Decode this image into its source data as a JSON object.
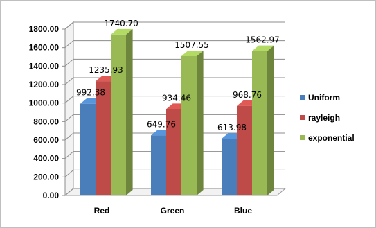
{
  "chart_data": {
    "type": "bar",
    "categories": [
      "Red",
      "Green",
      "Blue"
    ],
    "series": [
      {
        "name": "Uniform",
        "values": [
          992.38,
          649.76,
          613.98
        ],
        "color": "#4a7ebb"
      },
      {
        "name": "rayleigh",
        "values": [
          1235.93,
          934.46,
          968.76
        ],
        "color": "#be4b48"
      },
      {
        "name": "exponential",
        "values": [
          1740.7,
          1507.55,
          1562.97
        ],
        "color": "#98b954"
      }
    ],
    "data_labels": [
      [
        "992.38",
        "1235.93",
        "1740.70"
      ],
      [
        "649.76",
        "934.46",
        "1507.55"
      ],
      [
        "613.98",
        "968.76",
        "1562.97"
      ]
    ],
    "y_ticks": [
      "0.00",
      "200.00",
      "400.00",
      "600.00",
      "800.00",
      "1000.00",
      "1200.00",
      "1400.00",
      "1600.00",
      "1800.00"
    ],
    "ylim": [
      0,
      1800
    ],
    "grid": true,
    "legend_position": "right",
    "style": "3d-clustered-column",
    "title": "",
    "xlabel": "",
    "ylabel": ""
  }
}
